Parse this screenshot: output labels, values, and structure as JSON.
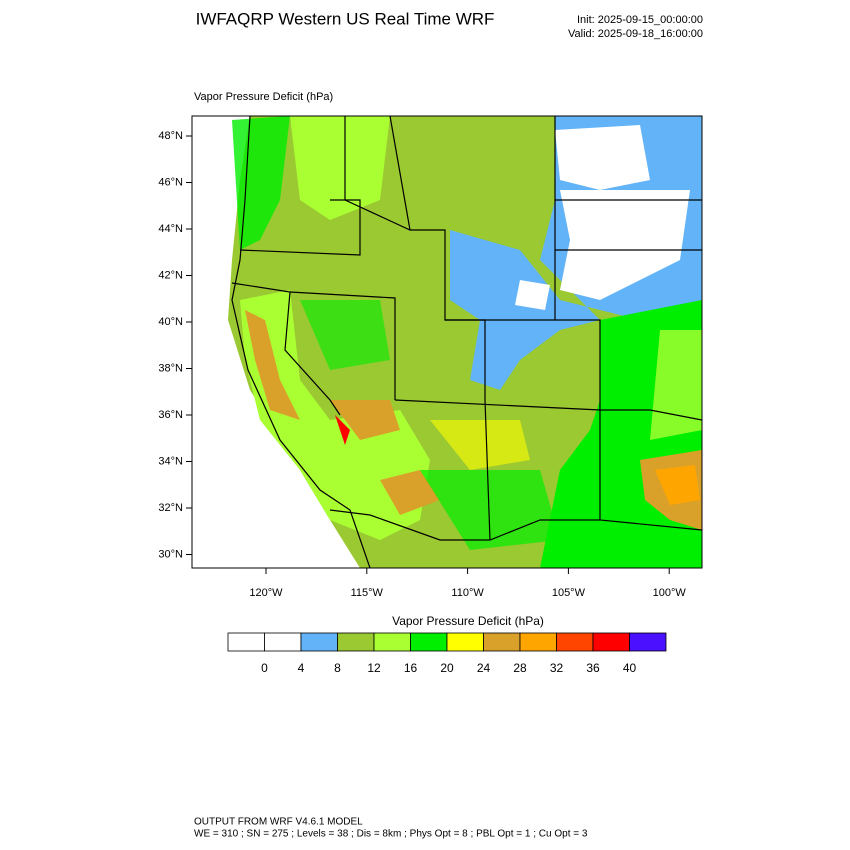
{
  "header": {
    "title": "IWFAQRP Western US Real Time WRF",
    "init": "Init: 2025-09-15_00:00:00",
    "valid": "Valid: 2025-09-18_16:00:00"
  },
  "map": {
    "field_label": "Vapor Pressure Deficit   (hPa)",
    "lat_labels": [
      "48°N",
      "46°N",
      "44°N",
      "42°N",
      "40°N",
      "38°N",
      "36°N",
      "34°N",
      "32°N",
      "30°N"
    ],
    "lon_labels": [
      "120°W",
      "115°W",
      "110°W",
      "105°W",
      "100°W"
    ]
  },
  "colorbar": {
    "title": "Vapor Pressure Deficit  (hPa)",
    "levels": [
      0,
      4,
      8,
      12,
      16,
      20,
      24,
      28,
      32,
      36,
      40
    ],
    "colors": [
      "#ffffff",
      "#ffffff",
      "#62b3f7",
      "#9ac932",
      "#aaff33",
      "#00ee00",
      "#ffff00",
      "#daa12a",
      "#ffa500",
      "#ff4500",
      "#ff0000",
      "#4a10ff"
    ]
  },
  "footer": {
    "line1": "OUTPUT FROM WRF V4.6.1 MODEL",
    "line2": "WE = 310 ; SN = 275 ; Levels = 38 ; Dis = 8km ; Phys Opt = 8 ; PBL Opt = 1 ; Cu Opt = 3"
  }
}
